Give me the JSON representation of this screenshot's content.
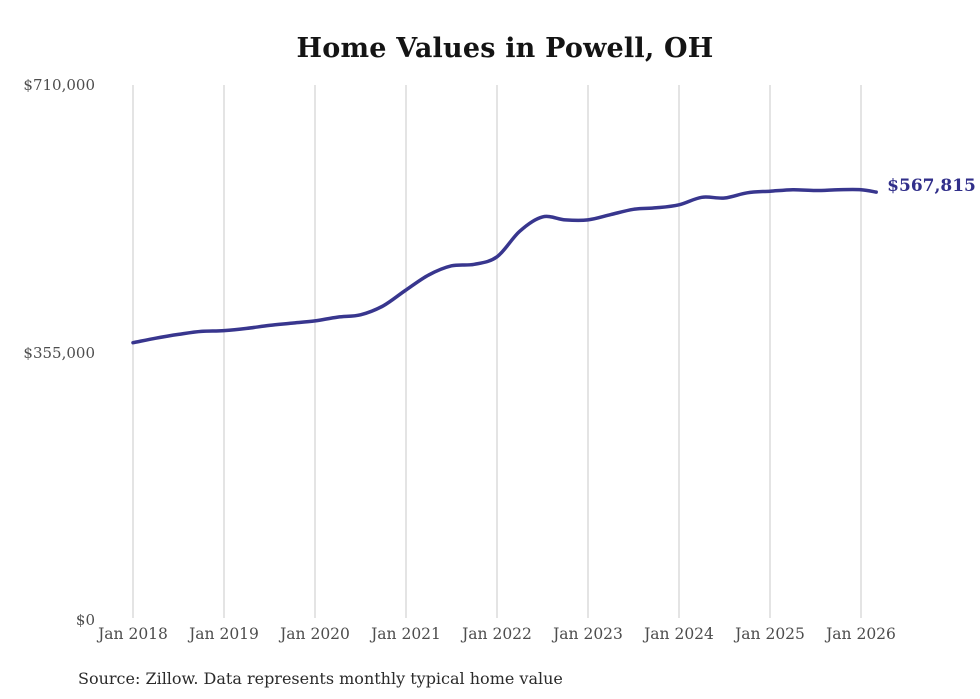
{
  "page": {
    "background": "#ffffff"
  },
  "chart_data": {
    "type": "line",
    "title": "Home Values in Powell, OH",
    "source": "Source: Zillow. Data represents monthly typical home value",
    "end_label": "$567,815",
    "end_value": 567815,
    "legend": "none",
    "grid": "vertical-only",
    "ylim": [
      0,
      710000
    ],
    "y_axis": {
      "ticks": [
        {
          "label": "$710,000",
          "value": 710000
        },
        {
          "label": "$355,000",
          "value": 355000
        },
        {
          "label": "$0",
          "value": 0
        }
      ]
    },
    "x_axis": {
      "ticks": [
        {
          "label": "Jan 2018",
          "date": "2018-01"
        },
        {
          "label": "Jan 2019",
          "date": "2019-01"
        },
        {
          "label": "Jan 2020",
          "date": "2020-01"
        },
        {
          "label": "Jan 2021",
          "date": "2021-01"
        },
        {
          "label": "Jan 2022",
          "date": "2022-01"
        },
        {
          "label": "Jan 2023",
          "date": "2023-01"
        },
        {
          "label": "Jan 2024",
          "date": "2024-01"
        },
        {
          "label": "Jan 2025",
          "date": "2025-01"
        },
        {
          "label": "Jan 2026",
          "date": "2026-01"
        }
      ]
    },
    "series": [
      {
        "name": "Typical home value",
        "points": [
          {
            "date": "2018-01",
            "value": 368000
          },
          {
            "date": "2018-04",
            "value": 374000
          },
          {
            "date": "2018-07",
            "value": 379000
          },
          {
            "date": "2018-10",
            "value": 383000
          },
          {
            "date": "2019-01",
            "value": 384000
          },
          {
            "date": "2019-04",
            "value": 387000
          },
          {
            "date": "2019-07",
            "value": 391000
          },
          {
            "date": "2019-10",
            "value": 394000
          },
          {
            "date": "2020-01",
            "value": 397000
          },
          {
            "date": "2020-04",
            "value": 402000
          },
          {
            "date": "2020-07",
            "value": 405000
          },
          {
            "date": "2020-10",
            "value": 417000
          },
          {
            "date": "2021-01",
            "value": 438000
          },
          {
            "date": "2021-04",
            "value": 458000
          },
          {
            "date": "2021-07",
            "value": 470000
          },
          {
            "date": "2021-10",
            "value": 472000
          },
          {
            "date": "2022-01",
            "value": 482000
          },
          {
            "date": "2022-04",
            "value": 516000
          },
          {
            "date": "2022-07",
            "value": 535000
          },
          {
            "date": "2022-10",
            "value": 531000
          },
          {
            "date": "2023-01",
            "value": 531000
          },
          {
            "date": "2023-04",
            "value": 538000
          },
          {
            "date": "2023-07",
            "value": 545000
          },
          {
            "date": "2023-10",
            "value": 547000
          },
          {
            "date": "2024-01",
            "value": 551000
          },
          {
            "date": "2024-04",
            "value": 561000
          },
          {
            "date": "2024-07",
            "value": 560000
          },
          {
            "date": "2024-10",
            "value": 567000
          },
          {
            "date": "2025-01",
            "value": 569000
          },
          {
            "date": "2025-04",
            "value": 571000
          },
          {
            "date": "2025-07",
            "value": 570000
          },
          {
            "date": "2025-10",
            "value": 571000
          },
          {
            "date": "2026-01",
            "value": 571000
          },
          {
            "date": "2026-03",
            "value": 567815
          }
        ]
      }
    ],
    "colors": {
      "line": "#38368e",
      "end_label": "#312f8a",
      "grid": "#c9c9c9",
      "title": "#141414",
      "tick": "#4d4d4d",
      "source": "#2b2b2b",
      "background": "#ffffff"
    }
  }
}
